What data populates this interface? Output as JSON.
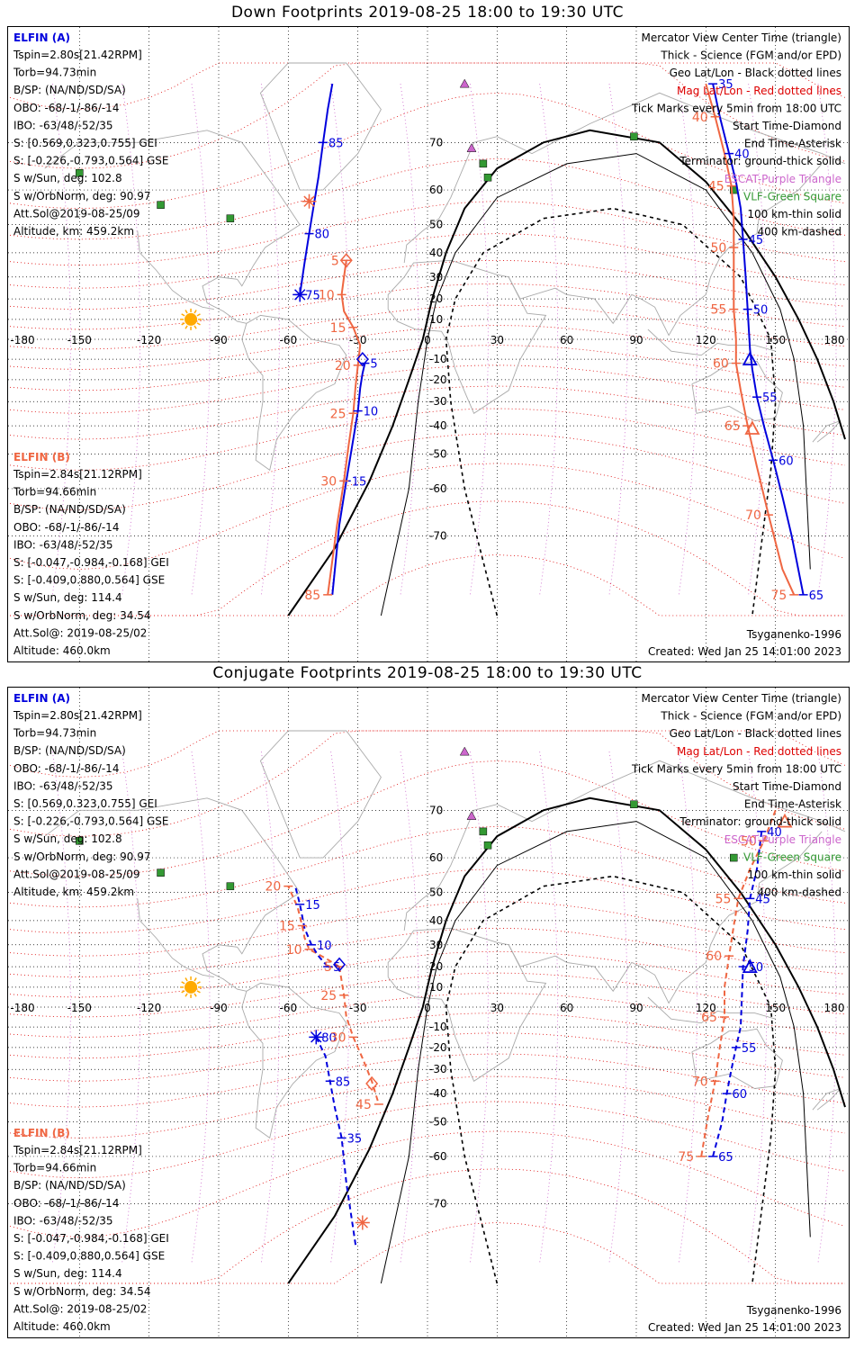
{
  "colors": {
    "elfin_a": "#0000dd",
    "elfin_b": "#ef6642",
    "mag_grid": "#dd0000",
    "geo_grid": "#000000",
    "aurora_pink": "#cc66cc",
    "vlf_green": "#339933",
    "coast": "#aaaaaa",
    "sun": "#ffaa00"
  },
  "left_info_a": {
    "title": "ELFIN (A)",
    "lines": [
      "Tspin=2.80s[21.42RPM]",
      "Torb=94.73min",
      "B/SP: (NA/ND/SD/SA)",
      "OBO: -68/-1/-86/-14",
      "IBO: -63/48/-52/35",
      "S: [0.569,0.323,0.755] GEI",
      "S: [-0.226,-0.793,0.564] GSE",
      "S w/Sun, deg: 102.8",
      "S w/OrbNorm, deg: 90.97",
      "Att.Sol@2019-08-25/09",
      "Altitude, km: 459.2km"
    ]
  },
  "left_info_b": {
    "title": "ELFIN (B)",
    "lines": [
      "Tspin=2.84s[21.12RPM]",
      "Torb=94.66min",
      "B/SP: (NA/ND/SD/SA)",
      "OBO: -68/-1/-86/-14",
      "IBO: -63/48/-52/35",
      "S: [-0.047,-0.984,-0.168] GEI",
      "S: [-0.409,0.880,0.564] GSE",
      "S w/Sun, deg: 114.4",
      "S w/OrbNorm, deg: 34.54",
      "Att.Sol@: 2019-08-25/02",
      "Altitude: 460.0km"
    ]
  },
  "legend": [
    {
      "text": "Mercator View Center Time (triangle)",
      "color": "#000000"
    },
    {
      "text": "Thick - Science (FGM and/or EPD)",
      "color": "#000000"
    },
    {
      "text": "Geo Lat/Lon - Black dotted lines",
      "color": "#000000"
    },
    {
      "text": "Mag Lat/Lon - Red dotted lines",
      "color": "#dd0000"
    },
    {
      "text": "Tick Marks every 5min from 18:00 UTC",
      "color": "#000000"
    },
    {
      "text": "Start Time-Diamond",
      "color": "#000000"
    },
    {
      "text": "End Time-Asterisk",
      "color": "#000000"
    },
    {
      "text": "Terminator: ground-thick solid",
      "color": "#000000"
    },
    {
      "text": "ESCAT-Purple Triangle",
      "color": "#cc66cc"
    },
    {
      "text": "VLF-Green Square",
      "color": "#339933"
    },
    {
      "text": "100 km-thin solid",
      "color": "#000000"
    },
    {
      "text": "400 km-dashed",
      "color": "#000000"
    }
  ],
  "bottom_right": {
    "model": "Tsyganenko-1996",
    "created": "Created: Wed Jan 25 14:01:00 2023"
  },
  "axis_ticks": {
    "lon": [
      "-180",
      "-150",
      "-120",
      "-90",
      "-60",
      "-30",
      "0",
      "30",
      "60",
      "90",
      "120",
      "150",
      "180"
    ],
    "lat": [
      "70",
      "60",
      "50",
      "40",
      "30",
      "20",
      "10",
      "-10",
      "-20",
      "-30",
      "-40",
      "-50",
      "-60",
      "-70"
    ]
  },
  "chart_data": [
    {
      "type": "map",
      "title": "Down Footprints 2019-08-25 18:00 to 19:30 UTC",
      "projection": "Mercator",
      "lon_range": [
        -180,
        180
      ],
      "elfin_a_track_labels": [
        "5",
        "10",
        "15",
        "75",
        "80",
        "85",
        "35",
        "40",
        "45",
        "50",
        "55",
        "60",
        "65"
      ],
      "elfin_b_track_labels": [
        "5",
        "10",
        "15",
        "20",
        "25",
        "30",
        "85",
        "40",
        "45",
        "50",
        "55",
        "60",
        "65",
        "70",
        "75"
      ],
      "elfin_a_track_1": [
        [
          -27,
          -12
        ],
        [
          -28,
          -17
        ],
        [
          -29,
          -24
        ],
        [
          -30,
          -34
        ],
        [
          -32,
          -45
        ],
        [
          -35,
          -58
        ],
        [
          -38,
          -68
        ],
        [
          -41,
          -78
        ]
      ],
      "elfin_a_track_2": [
        [
          -55,
          22
        ],
        [
          -53,
          36
        ],
        [
          -51,
          47
        ],
        [
          -49,
          56
        ],
        [
          -47,
          63
        ],
        [
          -45,
          70
        ],
        [
          -43,
          75
        ],
        [
          -41,
          78
        ]
      ],
      "elfin_a_track_3": [
        [
          123,
          78
        ],
        [
          126,
          74
        ],
        [
          130,
          68
        ],
        [
          133,
          62
        ],
        [
          135,
          55
        ],
        [
          136,
          45
        ],
        [
          137,
          32
        ],
        [
          138,
          15
        ],
        [
          139,
          -5
        ],
        [
          140,
          -15
        ],
        [
          142,
          -28
        ],
        [
          145,
          -40
        ],
        [
          149,
          -52
        ],
        [
          153,
          -62
        ],
        [
          157,
          -70
        ],
        [
          162,
          -78
        ]
      ],
      "elfin_b_track_1": [
        [
          -35,
          37
        ],
        [
          -36,
          30
        ],
        [
          -37,
          22
        ],
        [
          -36,
          14
        ],
        [
          -32,
          6
        ],
        [
          -29,
          -3
        ],
        [
          -30,
          -13
        ],
        [
          -31,
          -23
        ],
        [
          -32,
          -35
        ],
        [
          -34,
          -47
        ],
        [
          -36,
          -58
        ],
        [
          -39,
          -68
        ],
        [
          -43,
          -78
        ]
      ],
      "elfin_b_track_2": [
        [
          120,
          78
        ],
        [
          124,
          74
        ],
        [
          128,
          68
        ],
        [
          131,
          61
        ],
        [
          132,
          52
        ],
        [
          132,
          42
        ],
        [
          132,
          30
        ],
        [
          132,
          15
        ],
        [
          133,
          0
        ],
        [
          133,
          -12
        ],
        [
          135,
          -25
        ],
        [
          138,
          -40
        ],
        [
          142,
          -54
        ],
        [
          147,
          -66
        ],
        [
          153,
          -75
        ],
        [
          158,
          -78
        ]
      ],
      "markers": [
        {
          "kind": "start-diamond",
          "sat": "B",
          "lon": -35,
          "lat": 37
        },
        {
          "kind": "start-diamond",
          "sat": "A",
          "lon": -28,
          "lat": -10
        },
        {
          "kind": "end-asterisk",
          "sat": "B",
          "lon": -51,
          "lat": 57
        },
        {
          "kind": "end-asterisk",
          "sat": "A",
          "lon": -55,
          "lat": 22
        },
        {
          "kind": "view-triangle",
          "sat": "A",
          "lon": 139,
          "lat": -10
        },
        {
          "kind": "view-triangle",
          "sat": "B",
          "lon": 140,
          "lat": -41
        }
      ]
    },
    {
      "type": "map",
      "title": "Conjugate Footprints 2019-08-25 18:00 to 19:30 UTC",
      "projection": "Mercator",
      "lon_range": [
        -180,
        180
      ],
      "elfin_a_track_labels": [
        "5",
        "10",
        "15",
        "80",
        "85",
        "35",
        "40",
        "45",
        "50",
        "55",
        "60",
        "65"
      ],
      "elfin_b_track_labels": [
        "5",
        "10",
        "15",
        "20",
        "25",
        "30",
        "45",
        "50",
        "55",
        "60",
        "65",
        "70",
        "75"
      ],
      "elfin_a_track_1": [
        [
          -43,
          20
        ],
        [
          -47,
          25
        ],
        [
          -50,
          30
        ],
        [
          -53,
          37
        ],
        [
          -55,
          46
        ],
        [
          -57,
          52
        ]
      ],
      "elfin_a_track_2": [
        [
          -48,
          -15
        ],
        [
          -44,
          -24
        ],
        [
          -42,
          -35
        ],
        [
          -40,
          -45
        ],
        [
          -37,
          -55
        ],
        [
          -35,
          -66
        ],
        [
          -31,
          -76
        ]
      ],
      "elfin_a_track_3": [
        [
          144,
          66
        ],
        [
          142,
          57
        ],
        [
          139,
          48
        ],
        [
          138,
          36
        ],
        [
          136,
          20
        ],
        [
          135,
          -10
        ],
        [
          133,
          -20
        ],
        [
          131,
          -30
        ],
        [
          129,
          -40
        ],
        [
          127,
          -50
        ],
        [
          123,
          -60
        ]
      ],
      "elfin_b_track_1": [
        [
          -38,
          20
        ],
        [
          -44,
          24
        ],
        [
          -51,
          28
        ],
        [
          -53,
          33
        ],
        [
          -54,
          38
        ],
        [
          -56,
          45
        ],
        [
          -60,
          52
        ]
      ],
      "elfin_b_track_2": [
        [
          -38,
          20
        ],
        [
          -36,
          6
        ],
        [
          -35,
          -5
        ],
        [
          -32,
          -15
        ],
        [
          -28,
          -25
        ],
        [
          -24,
          -35
        ],
        [
          -21,
          -44
        ]
      ],
      "elfin_b_track_3": [
        [
          150,
          70
        ],
        [
          145,
          64
        ],
        [
          139,
          57
        ],
        [
          134,
          48
        ],
        [
          132,
          38
        ],
        [
          130,
          25
        ],
        [
          128,
          10
        ],
        [
          128,
          -5
        ],
        [
          126,
          -20
        ],
        [
          124,
          -35
        ],
        [
          121,
          -48
        ],
        [
          118,
          -60
        ]
      ],
      "markers": [
        {
          "kind": "start-diamond",
          "sat": "A",
          "lon": -38,
          "lat": 21
        },
        {
          "kind": "start-diamond",
          "sat": "B",
          "lon": -24,
          "lat": -36
        },
        {
          "kind": "end-asterisk",
          "sat": "A",
          "lon": -48,
          "lat": -15
        },
        {
          "kind": "end-asterisk",
          "sat": "B",
          "lon": -28,
          "lat": -73
        },
        {
          "kind": "view-triangle",
          "sat": "A",
          "lon": 139,
          "lat": 20
        },
        {
          "kind": "view-triangle",
          "sat": "B",
          "lon": 154,
          "lat": 68
        }
      ]
    }
  ]
}
